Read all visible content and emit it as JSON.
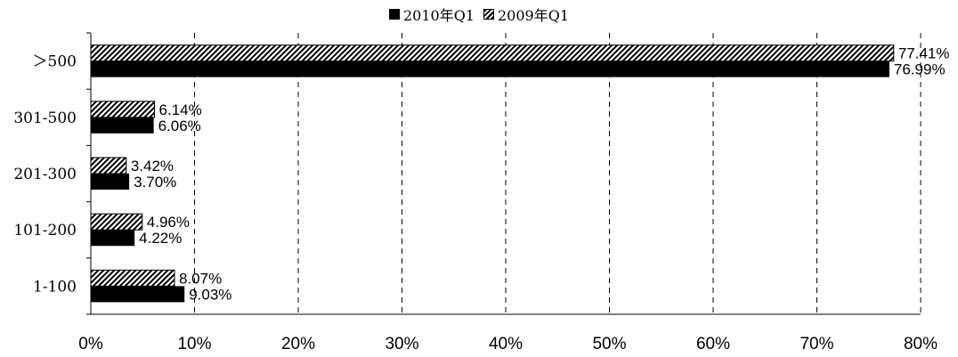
{
  "chart_data": {
    "type": "bar",
    "orientation": "horizontal",
    "categories": [
      "1-100",
      "101-200",
      "201-300",
      "301-500",
      "＞500"
    ],
    "series": [
      {
        "name": "2010年Q1",
        "values": [
          9.03,
          4.22,
          3.7,
          6.06,
          76.99
        ],
        "labels": [
          "9.03%",
          "4.22%",
          "3.70%",
          "6.06%",
          "76.99%"
        ],
        "pattern": "solid"
      },
      {
        "name": "2009年Q1",
        "values": [
          8.07,
          4.96,
          3.42,
          6.14,
          77.41
        ],
        "labels": [
          "8.07%",
          "4.96%",
          "3.42%",
          "6.14%",
          "77.41%"
        ],
        "pattern": "hatched"
      }
    ],
    "x_ticks": [
      "0%",
      "10%",
      "20%",
      "30%",
      "40%",
      "50%",
      "60%",
      "70%",
      "80%"
    ],
    "xlim": [
      0,
      80
    ],
    "grid": "vertical dashed",
    "legend_position": "top"
  },
  "legend": {
    "item_2010": "2010年Q1",
    "item_2009": "2009年Q1"
  },
  "colors": {
    "bar_2010": "#000000",
    "bar_2009_hatch": "#000000",
    "background": "#ffffff"
  }
}
